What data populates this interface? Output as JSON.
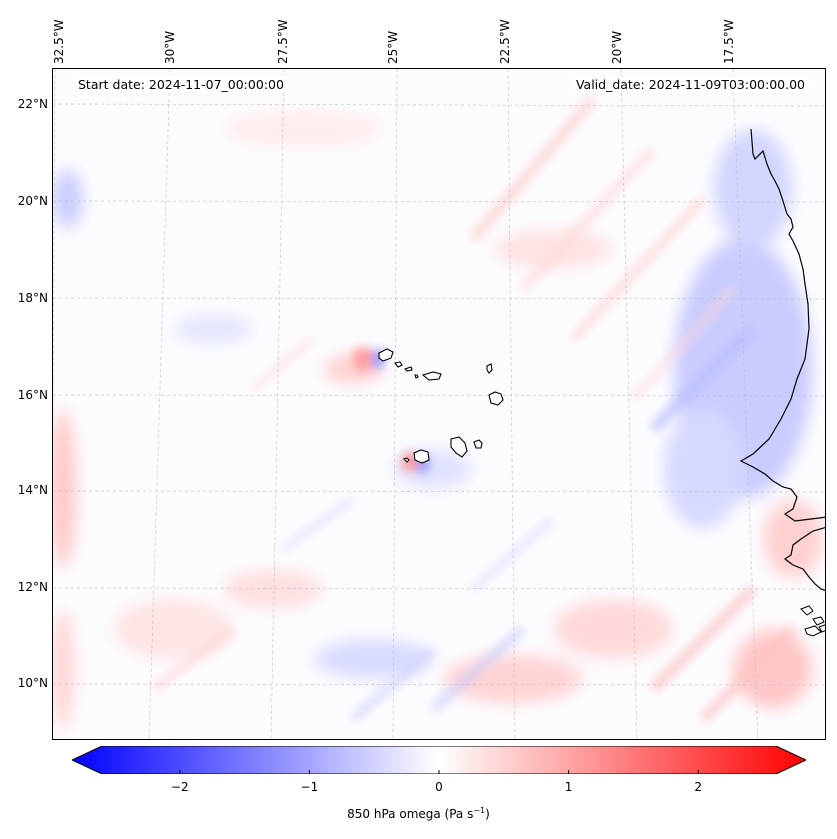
{
  "map": {
    "start_date": "Start date: 2024-11-07_00:00:00",
    "valid_date": "Valid_date: 2024-11-09T03:00:00.00",
    "lon_labels": [
      "32.5°W",
      "30°W",
      "27.5°W",
      "25°W",
      "22.5°W",
      "20°W",
      "17.5°W"
    ],
    "lat_labels": [
      "22°N",
      "20°N",
      "18°N",
      "16°N",
      "14°N",
      "12°N",
      "10°N"
    ],
    "colors": {
      "negative": "#0000ff",
      "neutral": "#ffffff",
      "positive": "#ff0000",
      "coastline": "#000000"
    }
  },
  "colorbar": {
    "label_main": "850 hPa omega (Pa s",
    "label_sup": "−1",
    "label_end": ")",
    "ticks": [
      "−2",
      "−1",
      "0",
      "1",
      "2"
    ],
    "tick_values": [
      -2,
      -1,
      0,
      1,
      2
    ],
    "range": [
      -2.6,
      2.6
    ]
  }
}
